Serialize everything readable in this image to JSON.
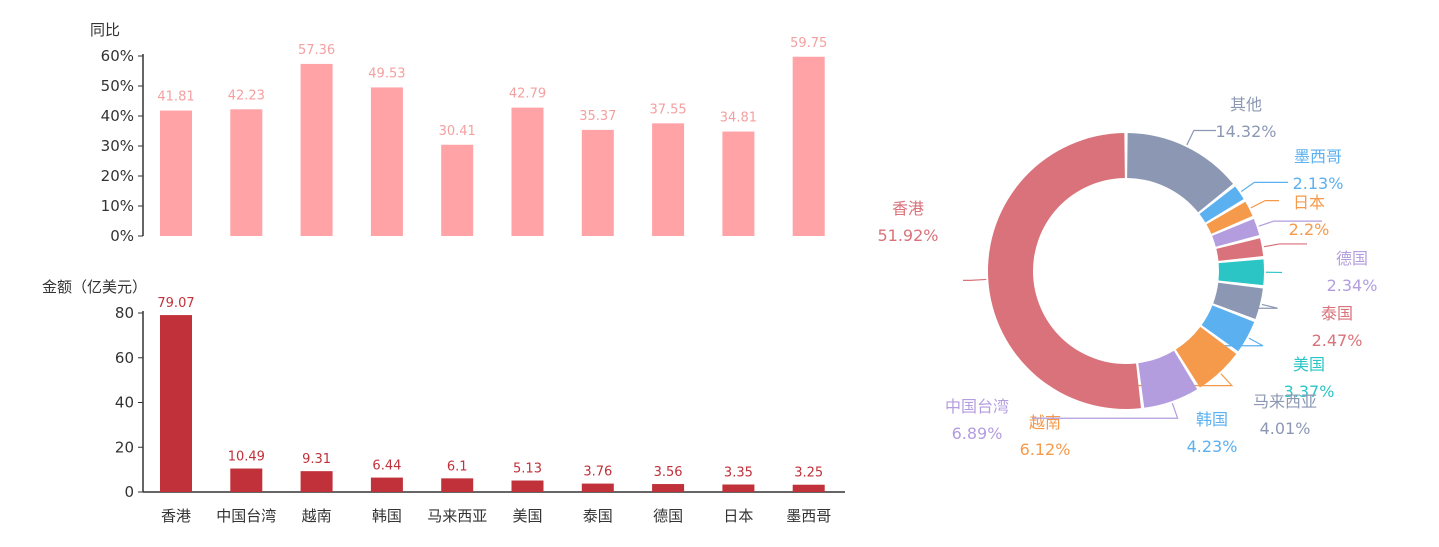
{
  "chart_data": [
    {
      "type": "bar",
      "ylabel": "同比",
      "categories": [
        "香港",
        "中国台湾",
        "越南",
        "韩国",
        "马来西亚",
        "美国",
        "泰国",
        "德国",
        "日本",
        "墨西哥"
      ],
      "values": [
        41.81,
        42.23,
        57.36,
        49.53,
        30.41,
        42.79,
        35.37,
        37.55,
        34.81,
        59.75
      ],
      "value_labels": [
        "41.81",
        "42.23",
        "57.36",
        "49.53",
        "30.41",
        "42.79",
        "35.37",
        "37.55",
        "34.81",
        "59.75"
      ],
      "ylim": [
        0,
        60
      ],
      "yticks": [
        "0%",
        "10%",
        "20%",
        "30%",
        "40%",
        "50%",
        "60%"
      ],
      "color": "#ffa3a6"
    },
    {
      "type": "bar",
      "ylabel": "金额（亿美元）",
      "categories": [
        "香港",
        "中国台湾",
        "越南",
        "韩国",
        "马来西亚",
        "美国",
        "泰国",
        "德国",
        "日本",
        "墨西哥"
      ],
      "values": [
        79.07,
        10.49,
        9.31,
        6.44,
        6.1,
        5.13,
        3.76,
        3.56,
        3.35,
        3.25
      ],
      "value_labels": [
        "79.07",
        "10.49",
        "9.31",
        "6.44",
        "6.1",
        "5.13",
        "3.76",
        "3.56",
        "3.35",
        "3.25"
      ],
      "ylim": [
        0,
        80
      ],
      "yticks": [
        "0",
        "20",
        "40",
        "60",
        "80"
      ],
      "color": "#c0313a"
    },
    {
      "type": "pie",
      "donut": true,
      "slices": [
        {
          "name": "其他",
          "value": 14.32,
          "label": "14.32%",
          "color": "#8c98b3"
        },
        {
          "name": "墨西哥",
          "value": 2.13,
          "label": "2.13%",
          "color": "#5bb0ef"
        },
        {
          "name": "日本",
          "value": 2.2,
          "label": "2.2%",
          "color": "#f59a4b"
        },
        {
          "name": "德国",
          "value": 2.34,
          "label": "2.34%",
          "color": "#b39ddf"
        },
        {
          "name": "泰国",
          "value": 2.47,
          "label": "2.47%",
          "color": "#d9727a"
        },
        {
          "name": "美国",
          "value": 3.37,
          "label": "3.37%",
          "color": "#2bc5c5"
        },
        {
          "name": "马来西亚",
          "value": 4.01,
          "label": "4.01%",
          "color": "#8c98b3"
        },
        {
          "name": "韩国",
          "value": 4.23,
          "label": "4.23%",
          "color": "#5bb0ef"
        },
        {
          "name": "越南",
          "value": 6.12,
          "label": "6.12%",
          "color": "#f59a4b"
        },
        {
          "name": "中国台湾",
          "value": 6.89,
          "label": "6.89%",
          "color": "#b39ddf"
        },
        {
          "name": "香港",
          "value": 51.92,
          "label": "51.92%",
          "color": "#d9727a"
        }
      ]
    }
  ]
}
